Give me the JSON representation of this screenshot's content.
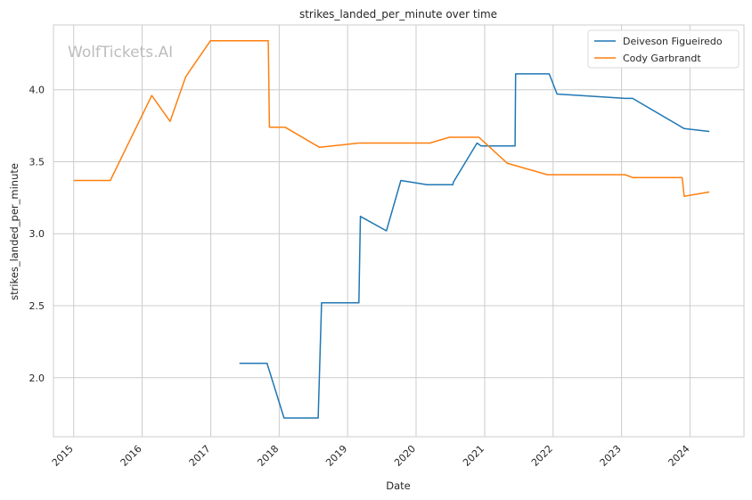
{
  "chart_data": {
    "type": "line",
    "title": "strikes_landed_per_minute over time",
    "xlabel": "Date",
    "ylabel": "strikes_landed_per_minute",
    "watermark": "WolfTickets.AI",
    "x_ticks": [
      "2015",
      "2016",
      "2017",
      "2018",
      "2019",
      "2020",
      "2021",
      "2022",
      "2023",
      "2024"
    ],
    "y_ticks": [
      "2.0",
      "2.5",
      "3.0",
      "3.5",
      "4.0"
    ],
    "xlim": [
      "2014-09-15",
      "2024-10-15"
    ],
    "ylim": [
      1.59,
      4.45
    ],
    "grid": true,
    "legend_position": "top-right",
    "series": [
      {
        "name": "Deiveson Figueiredo",
        "color": "#1f77b4",
        "points": [
          [
            "2017-06-03",
            2.1
          ],
          [
            "2017-10-28",
            2.1
          ],
          [
            "2018-01-27",
            1.72
          ],
          [
            "2018-07-28",
            1.72
          ],
          [
            "2018-08-15",
            2.52
          ],
          [
            "2019-03-02",
            2.52
          ],
          [
            "2019-03-10",
            3.12
          ],
          [
            "2019-07-27",
            3.02
          ],
          [
            "2019-10-12",
            3.37
          ],
          [
            "2020-02-29",
            3.34
          ],
          [
            "2020-07-15",
            3.34
          ],
          [
            "2020-07-19",
            3.36
          ],
          [
            "2020-11-21",
            3.63
          ],
          [
            "2020-12-12",
            3.61
          ],
          [
            "2021-06-12",
            3.61
          ],
          [
            "2021-06-15",
            4.11
          ],
          [
            "2021-12-11",
            4.11
          ],
          [
            "2022-01-22",
            3.97
          ],
          [
            "2023-01-21",
            3.94
          ],
          [
            "2023-03-01",
            3.94
          ],
          [
            "2023-12-01",
            3.73
          ],
          [
            "2024-04-13",
            3.71
          ]
        ]
      },
      {
        "name": "Cody Garbrandt",
        "color": "#ff7f0e",
        "points": [
          [
            "2015-01-01",
            3.37
          ],
          [
            "2015-07-15",
            3.37
          ],
          [
            "2016-02-21",
            3.96
          ],
          [
            "2016-05-29",
            3.78
          ],
          [
            "2016-08-20",
            4.09
          ],
          [
            "2016-12-30",
            4.34
          ],
          [
            "2017-11-04",
            4.34
          ],
          [
            "2017-11-10",
            3.74
          ],
          [
            "2018-02-01",
            3.74
          ],
          [
            "2018-08-04",
            3.6
          ],
          [
            "2019-03-01",
            3.63
          ],
          [
            "2020-03-15",
            3.63
          ],
          [
            "2020-06-27",
            3.67
          ],
          [
            "2020-12-01",
            3.67
          ],
          [
            "2021-05-01",
            3.49
          ],
          [
            "2021-12-01",
            3.41
          ],
          [
            "2023-01-20",
            3.41
          ],
          [
            "2023-03-01",
            3.39
          ],
          [
            "2023-11-20",
            3.39
          ],
          [
            "2023-12-01",
            3.26
          ],
          [
            "2024-04-13",
            3.29
          ]
        ]
      }
    ]
  }
}
